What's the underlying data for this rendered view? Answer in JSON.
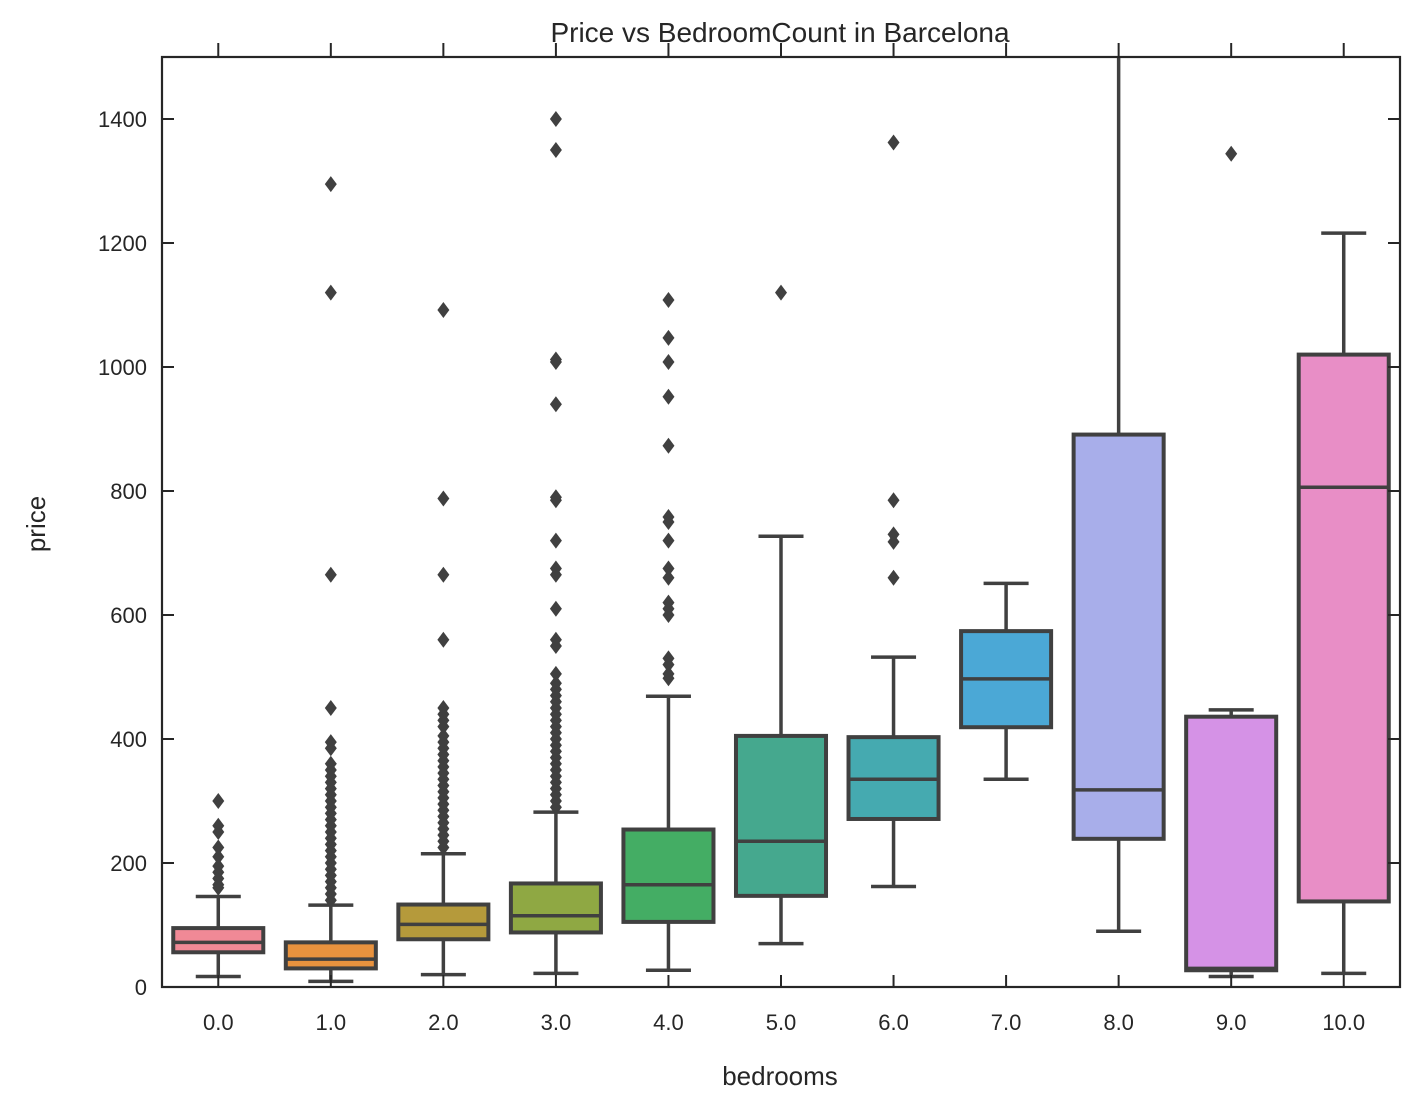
{
  "chart_data": {
    "type": "box",
    "title": "Price vs BedroomCount in Barcelona",
    "xlabel": "bedrooms",
    "ylabel": "price",
    "ylim": [
      0,
      1500
    ],
    "yticks": [
      0,
      200,
      400,
      600,
      800,
      1000,
      1200,
      1400
    ],
    "grid": false,
    "categories": [
      "0.0",
      "1.0",
      "2.0",
      "3.0",
      "4.0",
      "5.0",
      "6.0",
      "7.0",
      "8.0",
      "9.0",
      "10.0"
    ],
    "boxes": [
      {
        "category": "0.0",
        "color": "#f08996",
        "whisker_low": 17,
        "q1": 56,
        "median": 72,
        "q3": 95,
        "whisker_high": 146,
        "outliers": [
          160,
          165,
          175,
          185,
          195,
          210,
          225,
          250,
          260,
          300
        ]
      },
      {
        "category": "1.0",
        "color": "#e8923e",
        "whisker_low": 9,
        "q1": 30,
        "median": 45,
        "q3": 72,
        "whisker_high": 132,
        "outliers": [
          140,
          150,
          160,
          170,
          180,
          190,
          200,
          210,
          220,
          230,
          240,
          250,
          260,
          270,
          280,
          290,
          300,
          310,
          320,
          330,
          340,
          350,
          360,
          385,
          395,
          450,
          665,
          1120,
          1295
        ]
      },
      {
        "category": "2.0",
        "color": "#b59a3b",
        "whisker_low": 20,
        "q1": 77,
        "median": 101,
        "q3": 133,
        "whisker_high": 215,
        "outliers": [
          225,
          235,
          245,
          255,
          265,
          275,
          285,
          295,
          305,
          315,
          325,
          335,
          345,
          355,
          365,
          375,
          385,
          395,
          405,
          420,
          430,
          440,
          450,
          560,
          665,
          788,
          1092
        ]
      },
      {
        "category": "3.0",
        "color": "#8fa843",
        "whisker_low": 22,
        "q1": 88,
        "median": 115,
        "q3": 167,
        "whisker_high": 282,
        "outliers": [
          290,
          300,
          310,
          320,
          330,
          340,
          350,
          360,
          370,
          380,
          390,
          400,
          410,
          420,
          430,
          440,
          450,
          460,
          470,
          480,
          490,
          505,
          550,
          560,
          610,
          665,
          675,
          720,
          785,
          790,
          940,
          1008,
          1012,
          1350,
          1400
        ]
      },
      {
        "category": "4.0",
        "color": "#44ad64",
        "whisker_low": 27,
        "q1": 105,
        "median": 165,
        "q3": 254,
        "whisker_high": 469,
        "outliers": [
          498,
          505,
          520,
          530,
          600,
          610,
          620,
          660,
          675,
          720,
          750,
          758,
          873,
          952,
          1008,
          1047,
          1108
        ]
      },
      {
        "category": "5.0",
        "color": "#45a88e",
        "whisker_low": 70,
        "q1": 147,
        "median": 235,
        "q3": 405,
        "whisker_high": 727,
        "outliers": [
          1120
        ]
      },
      {
        "category": "6.0",
        "color": "#45aab0",
        "whisker_low": 162,
        "q1": 271,
        "median": 335,
        "q3": 403,
        "whisker_high": 532,
        "outliers": [
          660,
          718,
          730,
          785,
          1362
        ]
      },
      {
        "category": "7.0",
        "color": "#4ba8d6",
        "whisker_low": 335,
        "q1": 419,
        "median": 497,
        "q3": 574,
        "whisker_high": 651,
        "outliers": []
      },
      {
        "category": "8.0",
        "color": "#a8aeea",
        "whisker_low": 90,
        "q1": 239,
        "median": 318,
        "q3": 891,
        "whisker_high": 1600,
        "outliers": []
      },
      {
        "category": "9.0",
        "color": "#d592e6",
        "whisker_low": 17,
        "q1": 27,
        "median": 30,
        "q3": 436,
        "whisker_high": 447,
        "outliers": [
          1344
        ]
      },
      {
        "category": "10.0",
        "color": "#e88ec6",
        "whisker_low": 22,
        "q1": 138,
        "median": 806,
        "q3": 1020,
        "whisker_high": 1216,
        "outliers": []
      }
    ]
  }
}
